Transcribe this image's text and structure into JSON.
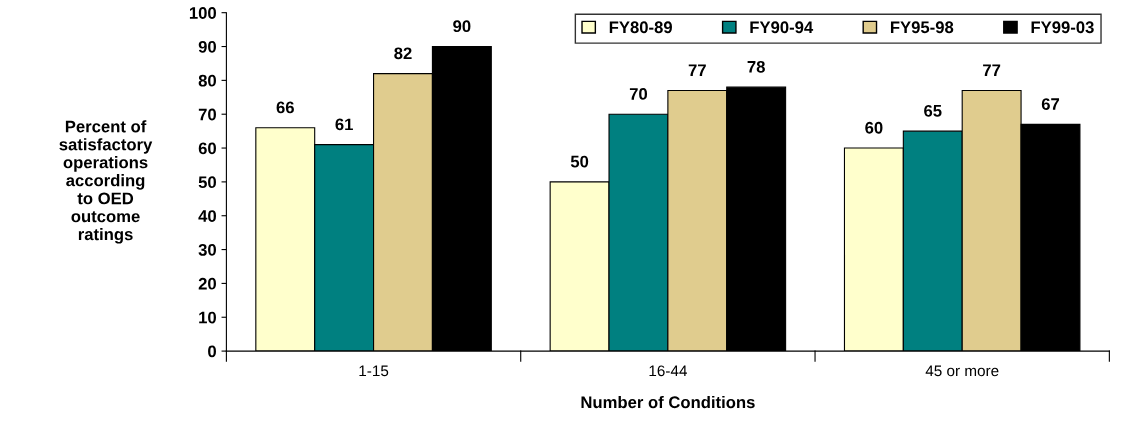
{
  "chart_data": {
    "type": "bar",
    "xlabel": "Number of Conditions",
    "ylabel": "Percent of\nsatisfactory\noperations\naccording\nto OED\noutcome\nratings",
    "categories": [
      "1-15",
      "16-44",
      "45 or more"
    ],
    "series": [
      {
        "name": "FY80-89",
        "color": "#ffffcc",
        "values": [
          66,
          50,
          60
        ]
      },
      {
        "name": "FY90-94",
        "color": "#008080",
        "values": [
          61,
          70,
          65
        ]
      },
      {
        "name": "FY95-98",
        "color": "#e0cc8e",
        "values": [
          82,
          77,
          77
        ]
      },
      {
        "name": "FY99-03",
        "color": "#000000",
        "values": [
          90,
          78,
          67
        ]
      }
    ],
    "ylim": [
      0,
      100
    ],
    "yticks": [
      0,
      10,
      20,
      30,
      40,
      50,
      60,
      70,
      80,
      90,
      100
    ],
    "data_labels": true,
    "legend": "top right",
    "grid": false
  }
}
